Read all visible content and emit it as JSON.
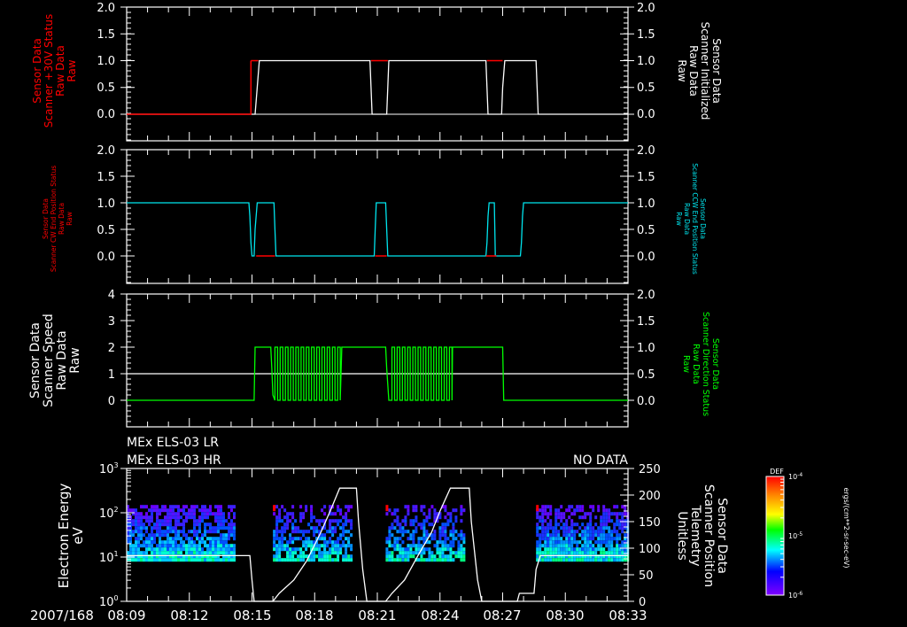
{
  "chart_data": [
    {
      "type": "line",
      "panel": 1,
      "time_range": [
        "08:09",
        "08:33"
      ],
      "left_ylabel": [
        "Sensor Data",
        "Scanner +30V Status",
        "Raw Data",
        "Raw"
      ],
      "left_ylabel_color": "#ff0000",
      "right_ylabel": [
        "Sensor Data",
        "Scanner Initialized",
        "Raw Data",
        "Raw"
      ],
      "right_ylabel_color": "#ffffff",
      "left_ylim": [
        -0.5,
        2.0
      ],
      "left_ticks": [
        "2.0",
        "1.5",
        "1.0",
        "0.5",
        "0.0"
      ],
      "right_ylim": [
        -0.5,
        2.0
      ],
      "right_ticks": [
        "2.0",
        "1.5",
        "1.0",
        "0.5",
        "0.0"
      ],
      "series": [
        {
          "name": "Scanner +30V Status",
          "color": "#ff0000",
          "points": [
            [
              0,
              0
            ],
            [
              5.95,
              0
            ],
            [
              5.95,
              1
            ],
            [
              24,
              1
            ]
          ]
        },
        {
          "name": "Scanner Initialized",
          "color": "#ffffff",
          "points": [
            [
              0,
              0
            ],
            [
              6.15,
              0
            ],
            [
              6.2,
              0.25
            ],
            [
              6.25,
              0.5
            ],
            [
              6.3,
              0.75
            ],
            [
              6.35,
              1
            ],
            [
              11.65,
              1
            ],
            [
              11.7,
              0.5
            ],
            [
              11.75,
              0
            ],
            [
              12.45,
              0
            ],
            [
              12.5,
              0.5
            ],
            [
              12.55,
              1
            ],
            [
              17.2,
              1
            ],
            [
              17.25,
              0.5
            ],
            [
              17.3,
              0
            ],
            [
              17.95,
              0
            ],
            [
              18.0,
              0.5
            ],
            [
              18.05,
              0.75
            ],
            [
              18.1,
              1
            ],
            [
              19.6,
              1
            ],
            [
              19.65,
              0.5
            ],
            [
              19.7,
              0
            ],
            [
              24,
              0
            ]
          ]
        }
      ],
      "hline": 0
    },
    {
      "type": "line",
      "panel": 2,
      "left_ylabel": [
        "Sensor Data",
        "Scanner CW End Position Status",
        "Raw Data",
        "Raw"
      ],
      "left_ylabel_color": "#ff0000",
      "right_ylabel": [
        "Sensor Data",
        "Scanner CCW End Position Status",
        "Raw Data",
        "Raw"
      ],
      "right_ylabel_color": "#00e5ee",
      "left_ylim": [
        -0.5,
        2.0
      ],
      "left_ticks": [
        "2.0",
        "1.5",
        "1.0",
        "0.5",
        "0.0"
      ],
      "right_ylim": [
        -0.5,
        2.0
      ],
      "right_ticks": [
        "2.0",
        "1.5",
        "1.0",
        "0.5",
        "0.0"
      ],
      "series": [
        {
          "name": "Scanner CW End Position Status",
          "color": "#ff0000",
          "points": [
            [
              6.2,
              0
            ],
            [
              7.1,
              0
            ],
            [
              null,
              null
            ],
            [
              11.9,
              0
            ],
            [
              12.45,
              0
            ],
            [
              null,
              null
            ],
            [
              17.2,
              0
            ],
            [
              17.7,
              0
            ]
          ]
        },
        {
          "name": "Scanner CCW End Position Status",
          "color": "#00e5ee",
          "points": [
            [
              0,
              1
            ],
            [
              5.85,
              1
            ],
            [
              5.9,
              0.75
            ],
            [
              5.95,
              0.25
            ],
            [
              6.0,
              0
            ],
            [
              6.1,
              0
            ],
            [
              6.15,
              0.5
            ],
            [
              6.2,
              0.75
            ],
            [
              6.25,
              1
            ],
            [
              7.05,
              1
            ],
            [
              7.1,
              0.5
            ],
            [
              7.15,
              0
            ],
            [
              11.85,
              0
            ],
            [
              11.9,
              0.5
            ],
            [
              11.95,
              1
            ],
            [
              12.4,
              1
            ],
            [
              12.45,
              0.5
            ],
            [
              12.5,
              0
            ],
            [
              17.2,
              0
            ],
            [
              17.25,
              0.25
            ],
            [
              17.3,
              0.75
            ],
            [
              17.35,
              1
            ],
            [
              17.6,
              1
            ],
            [
              17.65,
              0
            ],
            [
              18.85,
              0
            ],
            [
              18.9,
              0.25
            ],
            [
              18.95,
              0.75
            ],
            [
              19.0,
              1
            ],
            [
              24,
              1
            ]
          ]
        }
      ]
    },
    {
      "type": "line",
      "panel": 3,
      "left_ylabel": [
        "Sensor Data",
        "Scanner Speed",
        "Raw Data",
        "Raw"
      ],
      "left_ylabel_color": "#ffffff",
      "right_ylabel": [
        "Sensor Data",
        "Scanner Direction Status",
        "Raw Data",
        "Raw"
      ],
      "right_ylabel_color": "#00ff00",
      "left_ylim": [
        -1,
        4
      ],
      "left_ticks": [
        "4",
        "3",
        "2",
        "1",
        "0"
      ],
      "right_ylim": [
        -0.5,
        2.0
      ],
      "right_ticks": [
        "2.0",
        "1.5",
        "1.0",
        "0.5",
        "0.0"
      ],
      "series": [
        {
          "name": "Scanner Speed",
          "color": "#ffffff",
          "points": [
            [
              0,
              1
            ],
            [
              24,
              1
            ]
          ]
        },
        {
          "name": "Scanner Direction Status",
          "color": "#00ff00",
          "oscillation_windows": [
            [
              7.1,
              10.3
            ],
            [
              12.7,
              15.6
            ]
          ],
          "high_windows": [
            [
              6.15,
              6.9
            ],
            [
              10.3,
              12.4
            ],
            [
              15.6,
              18.0
            ]
          ],
          "low_value": 0,
          "high_value": 1.0
        }
      ]
    },
    {
      "type": "heatmap",
      "panel": 4,
      "titles": [
        "MEx ELS-03 LR",
        "MEx ELS-03 HR"
      ],
      "status_text": "NO DATA",
      "left_ylabel": [
        "Electron Energy",
        "eV"
      ],
      "left_yscale": "log",
      "left_ylim": [
        1,
        1000
      ],
      "left_ticks": [
        "10^3",
        "10^2",
        "10^1",
        "10^0"
      ],
      "right_ylabel": [
        "Sensor Data",
        "Scanner Position",
        "Telemetry",
        "Unitless"
      ],
      "right_ylim": [
        0,
        250
      ],
      "right_ticks": [
        "250",
        "200",
        "150",
        "100",
        "50",
        "0"
      ],
      "x_ticks": [
        "2007/168 08:09",
        "08:12",
        "08:15",
        "08:18",
        "08:21",
        "08:24",
        "08:27",
        "08:30",
        "08:33"
      ],
      "spectrogram_blocks": [
        {
          "t_start": 0.0,
          "t_end": 5.2,
          "e_min": 9,
          "e_max": 150
        },
        {
          "t_start": 7.0,
          "t_end": 10.8,
          "e_min": 9,
          "e_max": 150
        },
        {
          "t_start": 12.4,
          "t_end": 16.2,
          "e_min": 9,
          "e_max": 150
        },
        {
          "t_start": 19.6,
          "t_end": 24.0,
          "e_min": 9,
          "e_max": 150
        }
      ],
      "scanner_position_series": {
        "color": "#ffffff",
        "points": [
          [
            0,
            86
          ],
          [
            5.9,
            86
          ],
          [
            6.0,
            40
          ],
          [
            6.1,
            0
          ],
          [
            7.0,
            0
          ],
          [
            7.3,
            15
          ],
          [
            8.0,
            40
          ],
          [
            8.6,
            75
          ],
          [
            9.3,
            130
          ],
          [
            9.8,
            175
          ],
          [
            10.2,
            213
          ],
          [
            11.0,
            213
          ],
          [
            11.1,
            150
          ],
          [
            11.3,
            60
          ],
          [
            11.5,
            0
          ],
          [
            12.4,
            0
          ],
          [
            12.7,
            15
          ],
          [
            13.3,
            40
          ],
          [
            14.0,
            90
          ],
          [
            14.6,
            130
          ],
          [
            15.0,
            170
          ],
          [
            15.5,
            213
          ],
          [
            16.4,
            213
          ],
          [
            16.5,
            150
          ],
          [
            16.8,
            40
          ],
          [
            17.0,
            0
          ],
          [
            18.7,
            0
          ],
          [
            18.8,
            15
          ],
          [
            19.5,
            15
          ],
          [
            19.6,
            60
          ],
          [
            19.8,
            86
          ],
          [
            24,
            86
          ]
        ]
      },
      "colorbar": {
        "label": "DEF",
        "ticks": [
          "10^-4",
          "10^-5",
          "10^-6"
        ],
        "unit_label": "ergs/(cm**2-sr-sec-eV)",
        "colors": [
          "#ff0000",
          "#ff8000",
          "#ffff00",
          "#00ff00",
          "#00ffff",
          "#0000ff",
          "#8000ff"
        ]
      }
    }
  ],
  "x_axis": {
    "date_label": "2007/168",
    "tick_labels": [
      "08:09",
      "08:12",
      "08:15",
      "08:18",
      "08:21",
      "08:24",
      "08:27",
      "08:30",
      "08:33"
    ]
  },
  "panel1": {
    "left_label": [
      "Sensor Data",
      "Scanner +30V Status",
      "Raw Data",
      "Raw"
    ],
    "right_label": [
      "Sensor Data",
      "Scanner Initialized",
      "Raw Data",
      "Raw"
    ],
    "left_ticks": [
      "2.0",
      "1.5",
      "1.0",
      "0.5",
      "0.0"
    ],
    "right_ticks": [
      "2.0",
      "1.5",
      "1.0",
      "0.5",
      "0.0"
    ]
  },
  "panel2": {
    "left_label": [
      "Sensor Data",
      "Scanner CW End Position Status",
      "Raw Data",
      "Raw"
    ],
    "right_label": [
      "Sensor Data",
      "Scanner CCW End Position Status",
      "Raw Data",
      "Raw"
    ],
    "left_ticks": [
      "2.0",
      "1.5",
      "1.0",
      "0.5",
      "0.0"
    ],
    "right_ticks": [
      "2.0",
      "1.5",
      "1.0",
      "0.5",
      "0.0"
    ]
  },
  "panel3": {
    "left_label": [
      "Sensor Data",
      "Scanner Speed",
      "Raw Data",
      "Raw"
    ],
    "right_label": [
      "Sensor Data",
      "Scanner Direction Status",
      "Raw Data",
      "Raw"
    ],
    "left_ticks": [
      "4",
      "3",
      "2",
      "1",
      "0"
    ],
    "right_ticks": [
      "2.0",
      "1.5",
      "1.0",
      "0.5",
      "0.0"
    ]
  },
  "panel4": {
    "title_lr": "MEx ELS-03 LR",
    "title_hr": "MEx ELS-03 HR",
    "no_data": "NO DATA",
    "left_label": [
      "Electron Energy",
      "eV"
    ],
    "right_label": [
      "Sensor Data",
      "Scanner Position",
      "Telemetry",
      "Unitless"
    ],
    "left_ticks_base": [
      "10",
      "10",
      "10",
      "10"
    ],
    "left_ticks_exp": [
      "3",
      "2",
      "1",
      "0"
    ],
    "right_ticks": [
      "250",
      "200",
      "150",
      "100",
      "50",
      "0"
    ]
  },
  "colorbar": {
    "label": "DEF",
    "tick_base": [
      "10",
      "10",
      "10"
    ],
    "tick_exp": [
      "-4",
      "-5",
      "-6"
    ],
    "unit": "ergs/(cm**2-sr-sec-eV)"
  }
}
